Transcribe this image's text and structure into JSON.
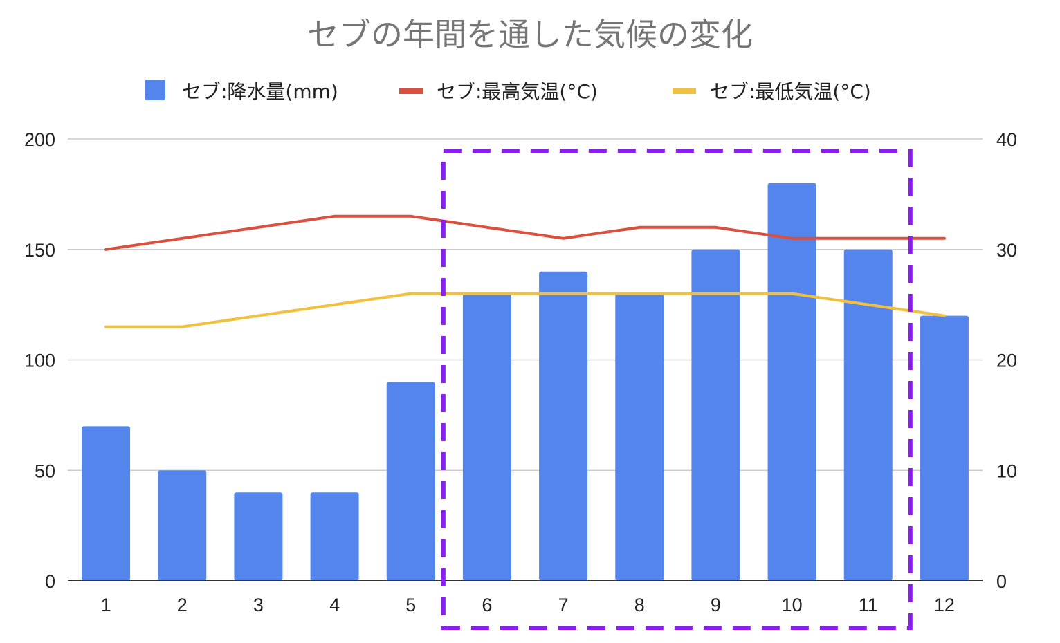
{
  "chart_data": {
    "type": "bar",
    "title": "セブの年間を通した気候の変化",
    "categories": [
      "1",
      "2",
      "3",
      "4",
      "5",
      "6",
      "7",
      "8",
      "9",
      "10",
      "11",
      "12"
    ],
    "series": [
      {
        "name": "セブ:降水量(mm)",
        "type": "bar",
        "axis": "left",
        "color": "#5385ED",
        "values": [
          70,
          50,
          40,
          40,
          90,
          130,
          140,
          130,
          150,
          180,
          150,
          120
        ]
      },
      {
        "name": "セブ:最高気温(°C)",
        "type": "line",
        "axis": "right",
        "color": "#DB4F3F",
        "values": [
          30,
          31,
          32,
          33,
          33,
          32,
          31,
          32,
          32,
          31,
          31,
          31
        ]
      },
      {
        "name": "セブ:最低気温(°C)",
        "type": "line",
        "axis": "right",
        "color": "#F2C03F",
        "values": [
          23,
          23,
          24,
          25,
          26,
          26,
          26,
          26,
          26,
          26,
          25,
          24
        ]
      }
    ],
    "y_left": {
      "min": 0,
      "max": 200,
      "ticks": [
        0,
        50,
        100,
        150,
        200
      ]
    },
    "y_right": {
      "min": 0,
      "max": 40,
      "ticks": [
        0,
        10,
        20,
        30,
        40
      ]
    },
    "grid": true,
    "legend_position": "top-center",
    "highlight": {
      "from_category": "6",
      "to_category": "11",
      "style": "dashed",
      "color": "#8B1CF2"
    }
  }
}
